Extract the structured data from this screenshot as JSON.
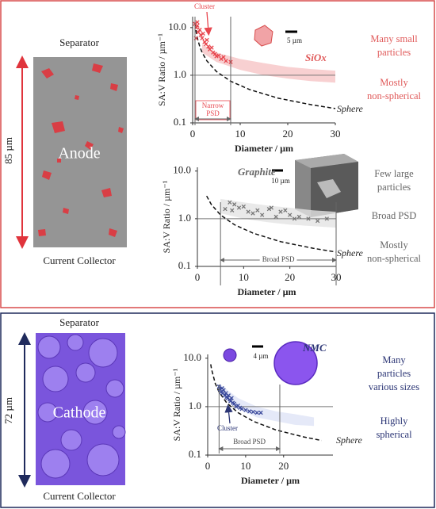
{
  "anode_panel": {
    "top_label": "Separator",
    "bottom_label": "Current Collector",
    "thickness": "85 µm",
    "electrode": "Anode"
  },
  "cathode_panel": {
    "top_label": "Separator",
    "bottom_label": "Current Collector",
    "thickness": "72 µm",
    "electrode": "Cathode"
  },
  "chart_data": [
    {
      "type": "scatter",
      "material": "SiOx",
      "color": "#e8474f",
      "note_color": "#e05a5a",
      "xlabel": "Diameter / µm",
      "ylabel": "SA:V Ratio / µm⁻¹",
      "xlim": [
        0,
        30
      ],
      "xticks": [
        0,
        10,
        20,
        30
      ],
      "ylim": [
        0.1,
        17
      ],
      "log_y": true,
      "yticks": [
        0.1,
        {
          "value": 1,
          "label": "1.0"
        },
        {
          "value": 10,
          "label": "10.0"
        }
      ],
      "reference_line": 1,
      "series": [
        {
          "color": "#e8474f",
          "x": [
            0.5,
            0.7,
            0.8,
            1,
            1,
            1.2,
            1.5,
            1.7,
            2,
            2.2,
            2.5,
            2.8,
            3,
            3.3,
            3.6,
            4,
            4.3,
            4.7,
            5,
            5.5,
            6,
            6.5,
            7,
            8
          ],
          "values": [
            12,
            6,
            10,
            11,
            13,
            8,
            9,
            7,
            6,
            7.5,
            5,
            4.5,
            5.5,
            4,
            3.5,
            3.8,
            3,
            2.8,
            2.5,
            2.6,
            2.2,
            2.4,
            2,
            1.9
          ]
        }
      ],
      "band": {
        "color": "#f6c4c6",
        "x": [
          2,
          5,
          10,
          15,
          20,
          25,
          30
        ],
        "upper": [
          4.5,
          3,
          2.2,
          1.8,
          1.5,
          1.35,
          1.25
        ],
        "lower": [
          3,
          1.9,
          1.3,
          1.0,
          0.85,
          0.75,
          0.7
        ]
      },
      "sphere": {
        "label": "Sphere",
        "x": [
          0.5,
          0.8,
          1,
          1.5,
          2,
          3,
          5,
          8,
          12,
          18,
          25,
          30
        ],
        "values": [
          12,
          7.5,
          6,
          4,
          3,
          2,
          1.2,
          0.75,
          0.5,
          0.33,
          0.24,
          0.2
        ]
      },
      "psd_range": [
        0.5,
        8
      ],
      "psd_label": [
        "Narrow",
        "PSD"
      ],
      "cluster_label": "Cluster",
      "scale_label": "5 µm",
      "notes": [
        [
          "Many small",
          "particles"
        ],
        [
          "Mostly",
          "non-spherical"
        ]
      ]
    },
    {
      "type": "scatter",
      "material": "Graphite",
      "color": "#777777",
      "note_color": "#666666",
      "xlabel": "Diameter / µm",
      "ylabel": "SA:V Ratio / µm⁻¹",
      "xlim": [
        0,
        30
      ],
      "xticks": [
        0,
        10,
        20,
        30
      ],
      "ylim": [
        0.1,
        12
      ],
      "log_y": true,
      "yticks": [
        0.1,
        {
          "value": 1,
          "label": "1.0"
        },
        {
          "value": 10,
          "label": "10.0"
        }
      ],
      "reference_line": 1,
      "series": [
        {
          "color": "#777777",
          "x": [
            6,
            7,
            7.5,
            8,
            9,
            10,
            11,
            12,
            13,
            14,
            15.5,
            16,
            17,
            18,
            19,
            20,
            21,
            22,
            24,
            26,
            28
          ],
          "values": [
            1.6,
            2.2,
            1.5,
            2,
            1.7,
            1.8,
            1.4,
            1.3,
            1.5,
            1.2,
            1.6,
            1.7,
            1.1,
            1.4,
            1.5,
            1.2,
            1.0,
            1.1,
            1.0,
            0.9,
            1.0
          ]
        }
      ],
      "band": {
        "color": "#e4e4e4",
        "x": [
          5,
          10,
          15,
          20,
          25,
          30
        ],
        "upper": [
          2.6,
          2.2,
          1.9,
          1.7,
          1.5,
          1.4
        ],
        "lower": [
          1.3,
          1.0,
          0.85,
          0.75,
          0.7,
          0.65
        ]
      },
      "sphere": {
        "label": "Sphere",
        "x": [
          2,
          3,
          5,
          8,
          12,
          18,
          25,
          30
        ],
        "values": [
          3,
          2,
          1.2,
          0.75,
          0.5,
          0.33,
          0.24,
          0.2
        ]
      },
      "psd_range": [
        5,
        30
      ],
      "psd_label": [
        "Broad PSD"
      ],
      "scale_label": "10 µm",
      "notes": [
        [
          "Few large",
          "particles"
        ],
        [
          "Broad PSD"
        ],
        [
          "Mostly",
          "non-spherical"
        ]
      ]
    },
    {
      "type": "scatter",
      "material": "NMC",
      "color": "#3b4a9c",
      "note_color": "#2b3575",
      "xlabel": "Diameter / µm",
      "ylabel": "SA:V Ratio / µm⁻¹",
      "xlim": [
        0,
        33
      ],
      "xticks": [
        0,
        10,
        20
      ],
      "ylim": [
        0.1,
        12
      ],
      "log_y": true,
      "yticks": [
        0.1,
        {
          "value": 1,
          "label": "1.0"
        },
        {
          "value": 10,
          "label": "10.0"
        }
      ],
      "reference_line": 1,
      "series": [
        {
          "color": "#3b4a9c",
          "x": [
            3,
            3.2,
            3.5,
            3.8,
            4,
            4.2,
            4.5,
            4.8,
            5,
            5.2,
            5.5,
            5.8,
            6,
            6.3,
            6.6,
            7,
            7.5,
            8,
            8.5,
            9,
            10,
            11,
            12,
            13,
            14
          ],
          "values": [
            2.6,
            2.3,
            2.0,
            2.4,
            1.9,
            2.2,
            1.7,
            1.9,
            1.6,
            1.5,
            1.7,
            1.4,
            1.3,
            1.5,
            1.2,
            1.15,
            1.0,
            1.05,
            0.95,
            0.9,
            0.85,
            0.8,
            0.78,
            0.75,
            0.75
          ]
        }
      ],
      "band": {
        "color": "#dfe3f6",
        "x": [
          3,
          8,
          13,
          18,
          23,
          28
        ],
        "upper": [
          3,
          1.5,
          1.0,
          0.8,
          0.7,
          0.6
        ],
        "lower": [
          1.8,
          0.9,
          0.6,
          0.5,
          0.42,
          0.4
        ]
      },
      "sphere": {
        "label": "Sphere",
        "x": [
          0.8,
          1,
          2,
          3,
          5,
          8,
          12,
          18,
          25,
          30
        ],
        "values": [
          7.5,
          6,
          3,
          2,
          1.2,
          0.75,
          0.5,
          0.33,
          0.24,
          0.2
        ]
      },
      "psd_range": [
        3,
        19
      ],
      "psd_label": [
        "Broad PSD"
      ],
      "cluster_label": "Cluster",
      "scale_label": "4 µm",
      "notes": [
        [
          "Many",
          "particles",
          "various sizes"
        ],
        [
          "Highly",
          "spherical"
        ]
      ]
    }
  ]
}
